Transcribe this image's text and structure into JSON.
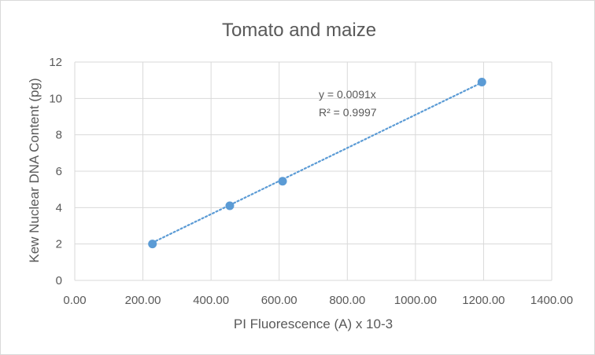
{
  "chart_data": {
    "type": "scatter",
    "title": "Tomato and maize",
    "xlabel": "PI Fluorescence (A) x 10-3",
    "ylabel": "Kew Nuclear DNA Content (pg)",
    "xlim": [
      0,
      1400
    ],
    "ylim": [
      0,
      12
    ],
    "x_ticks": [
      0,
      200,
      400,
      600,
      800,
      1000,
      1200,
      1400
    ],
    "x_tick_labels": [
      "0.00",
      "200.00",
      "400.00",
      "600.00",
      "800.00",
      "1000.00",
      "1200.00",
      "1400.00"
    ],
    "y_ticks": [
      0,
      2,
      4,
      6,
      8,
      10,
      12
    ],
    "y_tick_labels": [
      "0",
      "2",
      "4",
      "6",
      "8",
      "10",
      "12"
    ],
    "grid": true,
    "points": [
      {
        "x": 228,
        "y": 2.0
      },
      {
        "x": 455,
        "y": 4.1
      },
      {
        "x": 610,
        "y": 5.45
      },
      {
        "x": 1195,
        "y": 10.9
      }
    ],
    "trendline": {
      "type": "linear",
      "slope": 0.0091,
      "intercept": 0,
      "x_range": [
        228,
        1195
      ],
      "style": "dotted"
    },
    "annotations": {
      "equation": "y = 0.0091x",
      "r_squared": "R² = 0.9997"
    },
    "colors": {
      "marker": "#5b9bd5",
      "trendline": "#5b9bd5",
      "grid": "#d9d9d9",
      "text": "#595959"
    }
  }
}
